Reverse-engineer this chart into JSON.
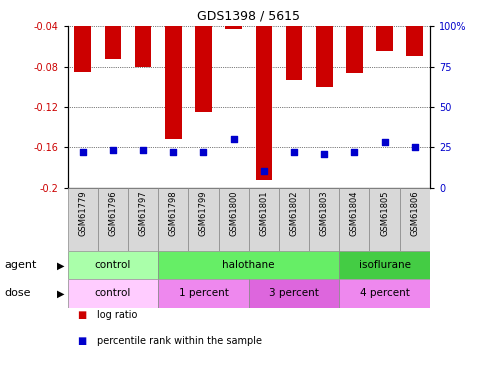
{
  "title": "GDS1398 / 5615",
  "samples": [
    "GSM61779",
    "GSM61796",
    "GSM61797",
    "GSM61798",
    "GSM61799",
    "GSM61800",
    "GSM61801",
    "GSM61802",
    "GSM61803",
    "GSM61804",
    "GSM61805",
    "GSM61806"
  ],
  "log_ratios": [
    -0.085,
    -0.072,
    -0.08,
    -0.152,
    -0.125,
    -0.043,
    -0.193,
    -0.093,
    -0.1,
    -0.086,
    -0.065,
    -0.07
  ],
  "percentile_ranks": [
    22,
    23,
    23,
    22,
    22,
    30,
    10,
    22,
    21,
    22,
    28,
    25
  ],
  "ylim_left": [
    -0.2,
    -0.04
  ],
  "ylim_right": [
    0,
    100
  ],
  "yticks_left": [
    -0.2,
    -0.16,
    -0.12,
    -0.08,
    -0.04
  ],
  "ytick_labels_left": [
    "-0.2",
    "-0.16",
    "-0.12",
    "-0.08",
    "-0.04"
  ],
  "yticks_right": [
    0,
    25,
    50,
    75,
    100
  ],
  "ytick_labels_right": [
    "0",
    "25",
    "50",
    "75",
    "100%"
  ],
  "bar_color": "#cc0000",
  "blue_color": "#0000cc",
  "agent_groups": [
    {
      "label": "control",
      "start": 0,
      "end": 3,
      "color": "#aaffaa"
    },
    {
      "label": "halothane",
      "start": 3,
      "end": 9,
      "color": "#66ee66"
    },
    {
      "label": "isoflurane",
      "start": 9,
      "end": 12,
      "color": "#44cc44"
    }
  ],
  "dose_groups": [
    {
      "label": "control",
      "start": 0,
      "end": 3,
      "color": "#ffccff"
    },
    {
      "label": "1 percent",
      "start": 3,
      "end": 6,
      "color": "#ee88ee"
    },
    {
      "label": "3 percent",
      "start": 6,
      "end": 9,
      "color": "#dd66dd"
    },
    {
      "label": "4 percent",
      "start": 9,
      "end": 12,
      "color": "#ee88ee"
    }
  ],
  "agent_label": "agent",
  "dose_label": "dose",
  "grid_color": "black",
  "axis_label_color_left": "#cc0000",
  "axis_label_color_right": "#0000cc",
  "bar_width": 0.55,
  "legend_red_label": "log ratio",
  "legend_blue_label": "percentile rank within the sample",
  "fig_width": 4.83,
  "fig_height": 3.75
}
